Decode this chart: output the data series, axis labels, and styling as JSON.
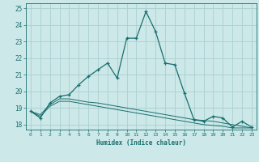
{
  "xlabel": "Humidex (Indice chaleur)",
  "background_color": "#cce8e8",
  "grid_color": "#aad0d0",
  "line_color": "#1a6e6e",
  "xlim": [
    -0.5,
    23.5
  ],
  "ylim": [
    17.7,
    25.3
  ],
  "yticks": [
    18,
    19,
    20,
    21,
    22,
    23,
    24,
    25
  ],
  "xticks": [
    0,
    1,
    2,
    3,
    4,
    5,
    6,
    7,
    8,
    9,
    10,
    11,
    12,
    13,
    14,
    15,
    16,
    17,
    18,
    19,
    20,
    21,
    22,
    23
  ],
  "series": [
    {
      "x": [
        0,
        1,
        2,
        3,
        4,
        5,
        6,
        7,
        8,
        9,
        10,
        11,
        12,
        13,
        14,
        15,
        16,
        17,
        18,
        19,
        20,
        21,
        22,
        23
      ],
      "y": [
        18.8,
        18.4,
        19.3,
        19.7,
        19.8,
        20.4,
        20.9,
        21.3,
        21.7,
        20.8,
        23.2,
        23.2,
        24.8,
        23.6,
        21.7,
        21.6,
        19.9,
        18.3,
        18.2,
        18.5,
        18.4,
        17.85,
        18.2,
        17.85
      ],
      "has_markers": true
    },
    {
      "x": [
        0,
        1,
        2,
        3,
        4,
        5,
        6,
        7,
        8,
        9,
        10,
        11,
        12,
        13,
        14,
        15,
        16,
        17,
        18,
        19,
        20,
        21,
        22,
        23
      ],
      "y": [
        18.8,
        18.6,
        19.2,
        19.55,
        19.55,
        19.45,
        19.35,
        19.3,
        19.2,
        19.1,
        19.0,
        18.9,
        18.8,
        18.7,
        18.6,
        18.5,
        18.4,
        18.3,
        18.25,
        18.2,
        18.1,
        18.0,
        17.9,
        17.8
      ],
      "has_markers": false
    },
    {
      "x": [
        0,
        1,
        2,
        3,
        4,
        5,
        6,
        7,
        8,
        9,
        10,
        11,
        12,
        13,
        14,
        15,
        16,
        17,
        18,
        19,
        20,
        21,
        22,
        23
      ],
      "y": [
        18.8,
        18.5,
        19.1,
        19.4,
        19.4,
        19.3,
        19.2,
        19.1,
        19.0,
        18.9,
        18.8,
        18.7,
        18.6,
        18.5,
        18.4,
        18.3,
        18.2,
        18.1,
        18.0,
        17.95,
        17.9,
        17.8,
        17.8,
        17.8
      ],
      "has_markers": false
    }
  ]
}
